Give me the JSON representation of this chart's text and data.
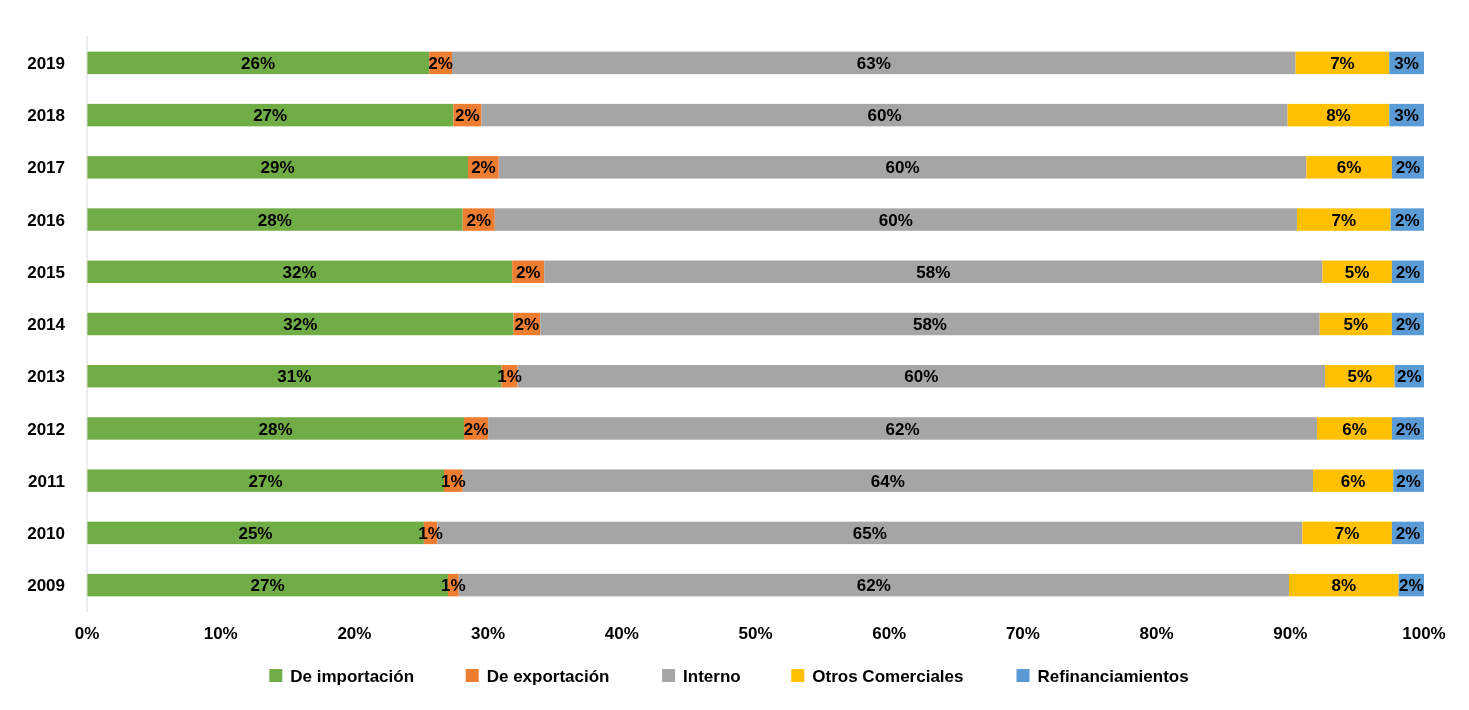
{
  "chart_data": {
    "type": "bar",
    "orientation": "horizontal",
    "stacked": true,
    "categories": [
      "2019",
      "2018",
      "2017",
      "2016",
      "2015",
      "2014",
      "2013",
      "2012",
      "2011",
      "2010",
      "2009"
    ],
    "series": [
      {
        "name": "De importación",
        "color": "#70ad47",
        "values": [
          25.6,
          27.4,
          28.5,
          28.1,
          31.8,
          31.9,
          31.0,
          28.2,
          26.7,
          25.2,
          27.0
        ],
        "value_labels": [
          "26%",
          "27%",
          "29%",
          "28%",
          "32%",
          "32%",
          "31%",
          "28%",
          "27%",
          "25%",
          "27%"
        ]
      },
      {
        "name": "De exportación",
        "color": "#ed7d31",
        "values": [
          1.7,
          2.1,
          2.3,
          2.4,
          2.4,
          2.0,
          1.2,
          1.8,
          1.4,
          1.0,
          0.8
        ],
        "value_labels": [
          "2%",
          "2%",
          "2%",
          "2%",
          "2%",
          "2%",
          "1%",
          "2%",
          "1%",
          "1%",
          "1%"
        ]
      },
      {
        "name": "Interno",
        "color": "#a5a5a5",
        "values": [
          63.1,
          60.3,
          60.4,
          60.0,
          58.2,
          58.3,
          60.4,
          62.0,
          63.6,
          64.7,
          62.1
        ],
        "value_labels": [
          "63%",
          "60%",
          "60%",
          "60%",
          "58%",
          "58%",
          "60%",
          "62%",
          "64%",
          "65%",
          "62%"
        ]
      },
      {
        "name": "Otros Comerciales",
        "color": "#ffc000",
        "values": [
          7.0,
          7.6,
          6.4,
          7.0,
          5.2,
          5.4,
          5.2,
          5.6,
          6.0,
          6.7,
          8.2
        ],
        "value_labels": [
          "7%",
          "8%",
          "6%",
          "7%",
          "5%",
          "5%",
          "5%",
          "6%",
          "6%",
          "7%",
          "8%"
        ]
      },
      {
        "name": "Refinanciamientos",
        "color": "#5b9bd5",
        "values": [
          2.6,
          2.6,
          2.4,
          2.5,
          2.4,
          2.4,
          2.2,
          2.4,
          2.3,
          2.4,
          1.9
        ],
        "value_labels": [
          "3%",
          "3%",
          "2%",
          "2%",
          "2%",
          "2%",
          "2%",
          "2%",
          "2%",
          "2%",
          "2%"
        ]
      }
    ],
    "xlim": [
      0,
      100
    ],
    "xticks": [
      {
        "value": 0,
        "label": "0%"
      },
      {
        "value": 10,
        "label": "10%"
      },
      {
        "value": 20,
        "label": "20%"
      },
      {
        "value": 30,
        "label": "30%"
      },
      {
        "value": 40,
        "label": "40%"
      },
      {
        "value": 50,
        "label": "50%"
      },
      {
        "value": 60,
        "label": "60%"
      },
      {
        "value": 70,
        "label": "70%"
      },
      {
        "value": 80,
        "label": "80%"
      },
      {
        "value": 90,
        "label": "90%"
      },
      {
        "value": 100,
        "label": "100%"
      }
    ],
    "grid": false,
    "legend": "bottom"
  }
}
